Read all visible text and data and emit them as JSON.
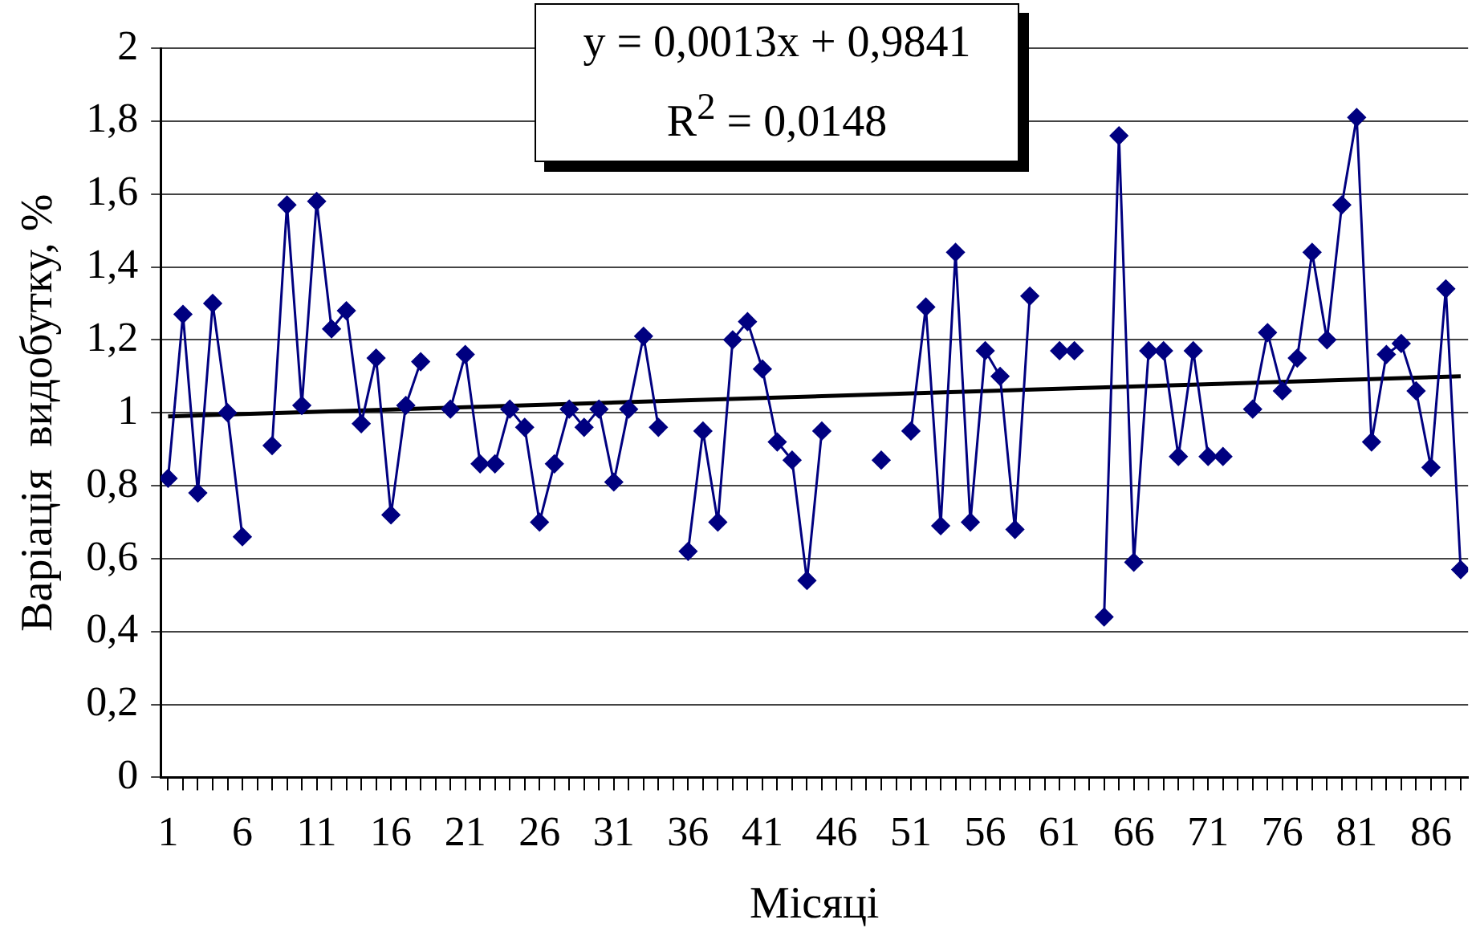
{
  "chart_data": {
    "type": "line",
    "xlabel": "Місяці",
    "ylabel": "Варіація  видобутку, %",
    "annotations": [
      "y = 0,0013x + 0,9841",
      "R$^{2}$ = 0,0148"
    ],
    "x": [
      1,
      2,
      3,
      4,
      5,
      6,
      7,
      8,
      9,
      10,
      11,
      12,
      13,
      14,
      15,
      16,
      17,
      18,
      19,
      20,
      21,
      22,
      23,
      24,
      25,
      26,
      27,
      28,
      29,
      30,
      31,
      32,
      33,
      34,
      35,
      36,
      37,
      38,
      39,
      40,
      41,
      42,
      43,
      44,
      45,
      46,
      47,
      48,
      49,
      50,
      51,
      52,
      53,
      54,
      55,
      56,
      57,
      58,
      59,
      60,
      61,
      62,
      63,
      64,
      65,
      66,
      67,
      68,
      69,
      70,
      71,
      72,
      73,
      74,
      75,
      76,
      77,
      78,
      79,
      80,
      81,
      82,
      83,
      84,
      85,
      86,
      87,
      88
    ],
    "series": [
      {
        "color": "#000080",
        "marker": "diamond",
        "values": [
          0.82,
          1.27,
          0.78,
          1.3,
          1.0,
          0.66,
          null,
          0.91,
          1.57,
          1.02,
          1.58,
          1.23,
          1.28,
          0.97,
          1.15,
          0.72,
          1.02,
          1.14,
          null,
          1.01,
          1.16,
          0.86,
          0.86,
          1.01,
          0.96,
          0.7,
          0.86,
          1.01,
          0.96,
          1.01,
          0.81,
          1.01,
          1.21,
          0.96,
          null,
          0.62,
          0.95,
          0.7,
          1.2,
          1.25,
          1.12,
          0.92,
          0.87,
          0.54,
          0.95,
          null,
          null,
          null,
          0.87,
          null,
          0.95,
          1.29,
          0.69,
          1.44,
          0.7,
          1.17,
          1.1,
          0.68,
          1.32,
          null,
          1.17,
          1.17,
          null,
          0.44,
          1.76,
          0.59,
          1.17,
          1.17,
          0.88,
          1.17,
          0.88,
          0.88,
          null,
          1.01,
          1.22,
          1.06,
          1.15,
          1.44,
          1.2,
          1.57,
          1.81,
          0.92,
          1.16,
          1.19,
          1.06,
          0.85,
          1.34,
          0.57
        ]
      },
      {
        "type": "line",
        "color": "#000000",
        "marker": "none",
        "x": [
          1,
          88
        ],
        "values": [
          0.99,
          1.1
        ]
      }
    ],
    "xlim": [
      0.5,
      88.5
    ],
    "xticks": [
      1,
      {
        "value": 2,
        "label": null
      },
      {
        "value": 3,
        "label": null
      },
      {
        "value": 4,
        "label": null
      },
      {
        "value": 5,
        "label": null
      },
      6,
      {
        "value": 7,
        "label": null
      },
      {
        "value": 8,
        "label": null
      },
      {
        "value": 9,
        "label": null
      },
      {
        "value": 10,
        "label": null
      },
      11,
      {
        "value": 12,
        "label": null
      },
      {
        "value": 13,
        "label": null
      },
      {
        "value": 14,
        "label": null
      },
      {
        "value": 15,
        "label": null
      },
      16,
      {
        "value": 17,
        "label": null
      },
      {
        "value": 18,
        "label": null
      },
      {
        "value": 19,
        "label": null
      },
      {
        "value": 20,
        "label": null
      },
      21,
      {
        "value": 22,
        "label": null
      },
      {
        "value": 23,
        "label": null
      },
      {
        "value": 24,
        "label": null
      },
      {
        "value": 25,
        "label": null
      },
      26,
      {
        "value": 27,
        "label": null
      },
      {
        "value": 28,
        "label": null
      },
      {
        "value": 29,
        "label": null
      },
      {
        "value": 30,
        "label": null
      },
      31,
      {
        "value": 32,
        "label": null
      },
      {
        "value": 33,
        "label": null
      },
      {
        "value": 34,
        "label": null
      },
      {
        "value": 35,
        "label": null
      },
      36,
      {
        "value": 37,
        "label": null
      },
      {
        "value": 38,
        "label": null
      },
      {
        "value": 39,
        "label": null
      },
      {
        "value": 40,
        "label": null
      },
      41,
      {
        "value": 42,
        "label": null
      },
      {
        "value": 43,
        "label": null
      },
      {
        "value": 44,
        "label": null
      },
      {
        "value": 45,
        "label": null
      },
      46,
      {
        "value": 47,
        "label": null
      },
      {
        "value": 48,
        "label": null
      },
      {
        "value": 49,
        "label": null
      },
      {
        "value": 50,
        "label": null
      },
      51,
      {
        "value": 52,
        "label": null
      },
      {
        "value": 53,
        "label": null
      },
      {
        "value": 54,
        "label": null
      },
      {
        "value": 55,
        "label": null
      },
      56,
      {
        "value": 57,
        "label": null
      },
      {
        "value": 58,
        "label": null
      },
      {
        "value": 59,
        "label": null
      },
      {
        "value": 60,
        "label": null
      },
      61,
      {
        "value": 62,
        "label": null
      },
      {
        "value": 63,
        "label": null
      },
      {
        "value": 64,
        "label": null
      },
      {
        "value": 65,
        "label": null
      },
      66,
      {
        "value": 67,
        "label": null
      },
      {
        "value": 68,
        "label": null
      },
      {
        "value": 69,
        "label": null
      },
      {
        "value": 70,
        "label": null
      },
      71,
      {
        "value": 72,
        "label": null
      },
      {
        "value": 73,
        "label": null
      },
      {
        "value": 74,
        "label": null
      },
      {
        "value": 75,
        "label": null
      },
      76,
      {
        "value": 77,
        "label": null
      },
      {
        "value": 78,
        "label": null
      },
      {
        "value": 79,
        "label": null
      },
      {
        "value": 80,
        "label": null
      },
      81,
      {
        "value": 82,
        "label": null
      },
      {
        "value": 83,
        "label": null
      },
      {
        "value": 84,
        "label": null
      },
      {
        "value": 85,
        "label": null
      },
      86,
      {
        "value": 87,
        "label": null
      },
      {
        "value": 88,
        "label": null
      }
    ],
    "ylim": [
      0,
      2
    ],
    "yticks": [
      0,
      {
        "value": 0.2,
        "label": "0,2"
      },
      {
        "value": 0.4,
        "label": "0,4"
      },
      {
        "value": 0.6,
        "label": "0,6"
      },
      {
        "value": 0.8,
        "label": "0,8"
      },
      1,
      {
        "value": 1.2,
        "label": "1,2"
      },
      {
        "value": 1.4,
        "label": "1,4"
      },
      {
        "value": 1.6,
        "label": "1,6"
      },
      {
        "value": 1.8,
        "label": "1,8"
      },
      2
    ],
    "grid": "y",
    "legend": false
  }
}
